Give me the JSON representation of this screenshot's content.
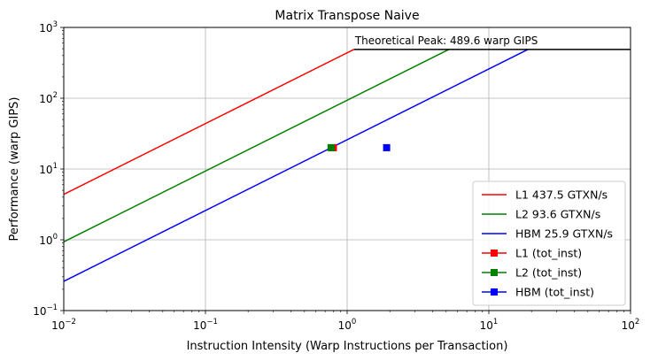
{
  "chart_data": {
    "type": "line",
    "title": "Matrix Transpose Naive",
    "xlabel": "Instruction Intensity (Warp Instructions per Transaction)",
    "ylabel": "Performance (warp GIPS)",
    "xscale": "log",
    "yscale": "log",
    "xlim": [
      0.01,
      100
    ],
    "ylim": [
      0.1,
      1000
    ],
    "grid": true,
    "legend_position": "bottom-right",
    "x_ticks": [
      {
        "value": 0.01,
        "base": "10",
        "exp": "−2"
      },
      {
        "value": 0.1,
        "base": "10",
        "exp": "−1"
      },
      {
        "value": 1,
        "base": "10",
        "exp": "0"
      },
      {
        "value": 10,
        "base": "10",
        "exp": "1"
      },
      {
        "value": 100,
        "base": "10",
        "exp": "2"
      }
    ],
    "y_ticks": [
      {
        "value": 0.1,
        "base": "10",
        "exp": "−1"
      },
      {
        "value": 1,
        "base": "10",
        "exp": "0"
      },
      {
        "value": 10,
        "base": "10",
        "exp": "1"
      },
      {
        "value": 100,
        "base": "10",
        "exp": "2"
      },
      {
        "value": 1000,
        "base": "10",
        "exp": "3"
      }
    ],
    "peak": {
      "value": 489.6,
      "label": "Theoretical Peak: 489.6 warp GIPS",
      "color": "#000000"
    },
    "rooflines": [
      {
        "name": "L1 437.5 GTXN/s",
        "bandwidth": 437.5,
        "color": "#ff0000"
      },
      {
        "name": "L2 93.6 GTXN/s",
        "bandwidth": 93.6,
        "color": "#008000"
      },
      {
        "name": "HBM 25.9 GTXN/s",
        "bandwidth": 25.9,
        "color": "#0000ff"
      }
    ],
    "points": [
      {
        "name": "L1 (tot_inst)",
        "x": 0.8,
        "y": 20,
        "color": "#ff0000"
      },
      {
        "name": "L2 (tot_inst)",
        "x": 0.77,
        "y": 20,
        "color": "#008000"
      },
      {
        "name": "HBM (tot_inst)",
        "x": 1.9,
        "y": 20,
        "color": "#0000ff"
      }
    ]
  }
}
